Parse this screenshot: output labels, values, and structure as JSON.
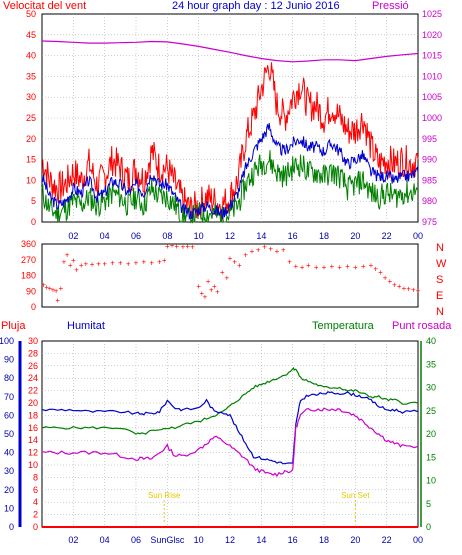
{
  "header": {
    "wind_label": "Velocitat del vent",
    "title": "24 hour graph day : 12 Junio 2016",
    "pressure_label": "Pressió"
  },
  "colors": {
    "red": "#ff0000",
    "green": "#008000",
    "blue": "#0000cc",
    "magenta": "#cc00cc",
    "yellow": "#e6c800",
    "frame": "#000000",
    "grid": "#a0a0a0"
  },
  "x_ticks": [
    "02",
    "04",
    "06",
    "08",
    "10",
    "12",
    "14",
    "16",
    "18",
    "20",
    "22",
    "00"
  ],
  "lower_x_ticks": [
    "02",
    "04",
    "06",
    "SunGlsc",
    "10",
    "12",
    "14",
    "16",
    "18",
    "20",
    "22",
    "00"
  ],
  "chart_data": [
    {
      "type": "line",
      "name": "wind",
      "x_unit": "hour",
      "xlim": [
        0,
        24
      ],
      "y_left_ticks": [
        "0",
        "5",
        "10",
        "15",
        "20",
        "25",
        "30",
        "35",
        "40",
        "45",
        "50"
      ],
      "ylim_left": [
        0,
        50
      ],
      "y_right_ticks": [
        "975",
        "980",
        "985",
        "990",
        "995",
        "1000",
        "1005",
        "1010",
        "1015",
        "1020",
        "1025"
      ],
      "ylim_right": [
        975,
        1025
      ],
      "gust_x": [
        0,
        0.5,
        1,
        1.5,
        2,
        2.5,
        3,
        3.5,
        4,
        4.5,
        5,
        5.5,
        6,
        6.5,
        7,
        7.5,
        8,
        8.5,
        9,
        9.5,
        10,
        10.5,
        11,
        11.5,
        12,
        12.5,
        13,
        13.5,
        14,
        14.5,
        15,
        15.5,
        16,
        16.5,
        17,
        17.5,
        18,
        18.5,
        19,
        19.5,
        20,
        20.5,
        21,
        21.5,
        22,
        22.5,
        23,
        23.5,
        24
      ],
      "gust_y": [
        15,
        10,
        8,
        9,
        12,
        10,
        14,
        9,
        11,
        15,
        13,
        10,
        13,
        10,
        17,
        13,
        13,
        9,
        5,
        3,
        4,
        6,
        5,
        4,
        6,
        10,
        20,
        25,
        32,
        38,
        28,
        25,
        30,
        33,
        28,
        28,
        25,
        28,
        25,
        22,
        22,
        25,
        18,
        14,
        15,
        14,
        15,
        14,
        15
      ],
      "avg_y": [
        11,
        6,
        4,
        5,
        8,
        7,
        10,
        6,
        7,
        10,
        9,
        7,
        9,
        7,
        12,
        9,
        9,
        6,
        3,
        2,
        3,
        4,
        3,
        2,
        4,
        7,
        13,
        17,
        20,
        23,
        18,
        17,
        19,
        20,
        18,
        18,
        17,
        19,
        17,
        14,
        15,
        16,
        12,
        11,
        11,
        10,
        11,
        11,
        12
      ],
      "low_y": [
        7,
        3,
        2,
        3,
        5,
        4,
        6,
        4,
        5,
        7,
        6,
        4,
        6,
        4,
        8,
        6,
        6,
        4,
        1,
        1,
        2,
        2,
        2,
        1,
        2,
        4,
        9,
        12,
        14,
        15,
        12,
        11,
        13,
        14,
        12,
        12,
        11,
        12,
        11,
        8,
        9,
        10,
        7,
        6,
        7,
        6,
        7,
        7,
        8
      ],
      "pressure_x": [
        0,
        1,
        2,
        3,
        4,
        5,
        6,
        7,
        8,
        9,
        10,
        11,
        12,
        13,
        14,
        15,
        16,
        17,
        18,
        19,
        20,
        21,
        22,
        23,
        24
      ],
      "pressure_y": [
        1018.5,
        1018.4,
        1018.2,
        1018.0,
        1018.0,
        1018.1,
        1018.2,
        1018.4,
        1018.3,
        1017.8,
        1017.2,
        1016.5,
        1015.8,
        1015.0,
        1014.3,
        1013.8,
        1013.5,
        1013.7,
        1014.0,
        1014.0,
        1013.8,
        1014.3,
        1014.8,
        1015.2,
        1015.5
      ],
      "series": [
        {
          "name": "Velocitat del vent",
          "color": "#ff0000"
        },
        {
          "name": "Pressió",
          "color": "#cc00cc"
        }
      ]
    },
    {
      "type": "scatter",
      "name": "wind_direction",
      "xlim": [
        0,
        24
      ],
      "y_left_ticks": [
        "0",
        "90",
        "180",
        "270",
        "360"
      ],
      "ylim": [
        0,
        360
      ],
      "compass_labels": [
        "N",
        "W",
        "S",
        "E",
        "N"
      ],
      "x": [
        0.1,
        0.3,
        0.5,
        0.7,
        0.9,
        1.0,
        1.2,
        1.4,
        1.6,
        1.8,
        2.0,
        2.2,
        2.5,
        2.8,
        3.2,
        3.6,
        4.0,
        4.5,
        5.0,
        5.5,
        6.0,
        6.5,
        7.0,
        7.5,
        7.8,
        8.0,
        8.3,
        8.6,
        9.0,
        9.3,
        9.6,
        10.0,
        10.2,
        10.4,
        10.6,
        10.8,
        11.0,
        11.2,
        11.5,
        11.8,
        12.0,
        12.3,
        12.6,
        13.0,
        13.4,
        13.8,
        14.2,
        14.6,
        15.0,
        15.4,
        15.8,
        16.2,
        16.6,
        17.0,
        17.5,
        18.0,
        18.5,
        19.0,
        19.5,
        20.0,
        20.5,
        21.0,
        21.3,
        21.6,
        21.9,
        22.2,
        22.5,
        22.8,
        23.1,
        23.4,
        23.7,
        24.0
      ],
      "y": [
        130,
        115,
        110,
        100,
        95,
        40,
        110,
        260,
        300,
        240,
        270,
        215,
        240,
        250,
        245,
        250,
        250,
        255,
        255,
        250,
        255,
        260,
        255,
        260,
        270,
        350,
        355,
        350,
        345,
        350,
        345,
        120,
        80,
        60,
        150,
        100,
        120,
        90,
        200,
        170,
        280,
        260,
        240,
        300,
        320,
        330,
        345,
        335,
        320,
        330,
        260,
        235,
        230,
        240,
        230,
        230,
        235,
        230,
        235,
        230,
        235,
        240,
        220,
        200,
        170,
        150,
        130,
        120,
        110,
        105,
        100,
        95
      ],
      "series": [
        {
          "name": "wind direction",
          "color": "#ff0000"
        }
      ]
    },
    {
      "type": "line",
      "name": "lower",
      "xlim": [
        0,
        24
      ],
      "y_ticks_pluja": [
        "0",
        "10",
        "20",
        "30",
        "40",
        "50",
        "60",
        "70",
        "80",
        "90",
        "100"
      ],
      "y_ticks_temp": [
        "0",
        "2",
        "4",
        "6",
        "8",
        "10",
        "12",
        "14",
        "16",
        "18",
        "20",
        "22",
        "24",
        "26",
        "28",
        "30"
      ],
      "ylim_temp": [
        0,
        30
      ],
      "y_ticks_punt": [
        "0",
        "5",
        "10",
        "15",
        "20",
        "25",
        "30",
        "35",
        "40"
      ],
      "ylim_punt": [
        0,
        40
      ],
      "x": [
        0,
        1,
        2,
        3,
        4,
        5,
        6,
        6.5,
        7,
        7.5,
        8,
        8.5,
        9,
        10,
        10.5,
        11,
        11.5,
        12,
        12.5,
        13,
        13.5,
        14,
        14.5,
        15,
        15.5,
        16,
        16.2,
        16.5,
        17,
        17.5,
        18,
        18.5,
        19,
        19.5,
        20,
        20.5,
        21,
        21.5,
        22,
        22.5,
        23,
        24
      ],
      "humidity": [
        63,
        63,
        63,
        62,
        62,
        62,
        61,
        61,
        61,
        62,
        68,
        64,
        63,
        64,
        68,
        62,
        62,
        60,
        52,
        45,
        38,
        37,
        36,
        35,
        34,
        34,
        55,
        68,
        71,
        71,
        72,
        72,
        72,
        72,
        71,
        70,
        68,
        65,
        63,
        63,
        62,
        62
      ],
      "temperature": [
        16,
        16,
        16,
        16,
        16,
        16,
        15,
        15,
        15.5,
        15.5,
        16,
        16,
        16.5,
        17,
        17.5,
        18,
        18.5,
        19.5,
        20.5,
        21.5,
        22.5,
        23,
        23.5,
        24,
        24.5,
        25.5,
        25.5,
        24,
        23.5,
        23,
        22.5,
        22.5,
        22.5,
        22,
        22,
        21.5,
        21,
        21,
        20.5,
        20.5,
        20,
        20
      ],
      "dewpoint": [
        12,
        12,
        12,
        12,
        12,
        11.5,
        11,
        11,
        11,
        12,
        13,
        11.5,
        11.5,
        12.5,
        13.5,
        14.5,
        14,
        13,
        12,
        11,
        9.5,
        9,
        8.5,
        8.5,
        9,
        9,
        16,
        18,
        19,
        19,
        19,
        19,
        19,
        18.5,
        18,
        17,
        16,
        15,
        14,
        13.5,
        13,
        13
      ],
      "rain": 0,
      "sunrise_hour": 7.8,
      "sunset_hour": 20.0,
      "labels": {
        "pluja": "Pluja",
        "humitat": "Humitat",
        "temperatura": "Temperatura",
        "punt_rosada": "Punt rosada",
        "sunrise": "Sun Rise",
        "sunset": "Sun Set"
      },
      "series": [
        {
          "name": "Humitat",
          "color": "#0000cc"
        },
        {
          "name": "Temperatura",
          "color": "#008000"
        },
        {
          "name": "Punt rosada",
          "color": "#cc00cc"
        },
        {
          "name": "Pluja",
          "color": "#ff0000"
        }
      ]
    }
  ]
}
